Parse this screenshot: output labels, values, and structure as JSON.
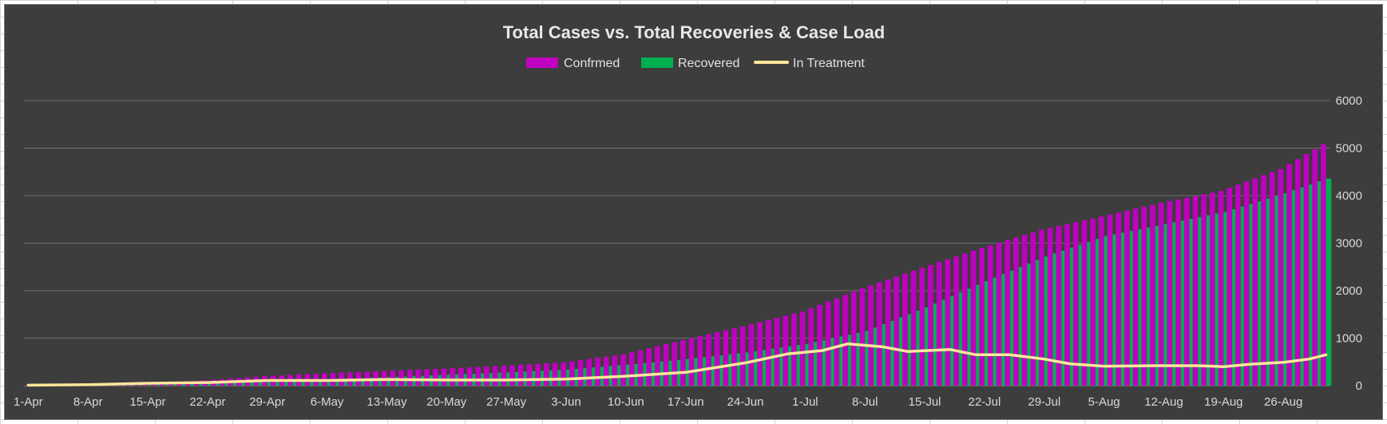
{
  "chart_data": {
    "type": "bar",
    "title": "Total Cases vs. Total Recoveries & Case Load",
    "xlabel": "",
    "ylabel": "",
    "ylim": [
      0,
      6000
    ],
    "y_ticks": [
      "0",
      "1000",
      "2000",
      "3000",
      "4000",
      "5000",
      "6000"
    ],
    "y_axis_side": "right",
    "x_ticks": [
      "1-Apr",
      "8-Apr",
      "15-Apr",
      "22-Apr",
      "29-Apr",
      "6-May",
      "13-May",
      "20-May",
      "27-May",
      "3-Jun",
      "10-Jun",
      "17-Jun",
      "24-Jun",
      "1-Jul",
      "8-Jul",
      "15-Jul",
      "22-Jul",
      "29-Jul",
      "5-Aug",
      "12-Aug",
      "19-Aug",
      "26-Aug"
    ],
    "date_range": [
      "1-Apr",
      "31-Aug"
    ],
    "x_tick_every_days": 7,
    "legend_position": "top",
    "grid": true,
    "colors": {
      "background": "#3d3d3d",
      "gridline": "#6e6e6e",
      "confirmed": "#c000c0",
      "recovered": "#00b050",
      "in_treatment": "#ffe699"
    },
    "series": [
      {
        "name": "Confrmed",
        "kind": "bar",
        "color": "#c000c0",
        "points": [
          [
            0,
            10
          ],
          [
            7,
            25
          ],
          [
            14,
            45
          ],
          [
            21,
            110
          ],
          [
            28,
            200
          ],
          [
            35,
            260
          ],
          [
            42,
            310
          ],
          [
            49,
            360
          ],
          [
            56,
            420
          ],
          [
            63,
            490
          ],
          [
            70,
            660
          ],
          [
            77,
            960
          ],
          [
            84,
            1250
          ],
          [
            91,
            1560
          ],
          [
            98,
            2050
          ],
          [
            105,
            2480
          ],
          [
            112,
            2900
          ],
          [
            119,
            3280
          ],
          [
            126,
            3560
          ],
          [
            133,
            3850
          ],
          [
            140,
            4100
          ],
          [
            147,
            4560
          ],
          [
            152,
            5080
          ]
        ]
      },
      {
        "name": "Recovered",
        "kind": "bar",
        "color": "#00b050",
        "points": [
          [
            0,
            0
          ],
          [
            7,
            5
          ],
          [
            14,
            20
          ],
          [
            21,
            40
          ],
          [
            28,
            80
          ],
          [
            35,
            130
          ],
          [
            42,
            180
          ],
          [
            49,
            230
          ],
          [
            56,
            280
          ],
          [
            63,
            340
          ],
          [
            70,
            440
          ],
          [
            77,
            560
          ],
          [
            84,
            700
          ],
          [
            91,
            880
          ],
          [
            98,
            1150
          ],
          [
            105,
            1650
          ],
          [
            112,
            2200
          ],
          [
            119,
            2720
          ],
          [
            126,
            3150
          ],
          [
            133,
            3400
          ],
          [
            140,
            3660
          ],
          [
            147,
            4050
          ],
          [
            152,
            4360
          ]
        ]
      },
      {
        "name": "In Treatment",
        "kind": "line",
        "color": "#ffe699",
        "points": [
          [
            0,
            10
          ],
          [
            7,
            20
          ],
          [
            14,
            50
          ],
          [
            21,
            65
          ],
          [
            28,
            110
          ],
          [
            35,
            110
          ],
          [
            42,
            130
          ],
          [
            49,
            120
          ],
          [
            56,
            120
          ],
          [
            63,
            140
          ],
          [
            70,
            200
          ],
          [
            77,
            280
          ],
          [
            84,
            480
          ],
          [
            89,
            670
          ],
          [
            93,
            740
          ],
          [
            96,
            880
          ],
          [
            100,
            820
          ],
          [
            103,
            720
          ],
          [
            108,
            760
          ],
          [
            111,
            650
          ],
          [
            115,
            650
          ],
          [
            119,
            560
          ],
          [
            122,
            460
          ],
          [
            126,
            410
          ],
          [
            132,
            420
          ],
          [
            137,
            420
          ],
          [
            140,
            400
          ],
          [
            143,
            450
          ],
          [
            147,
            490
          ],
          [
            150,
            560
          ],
          [
            152,
            650
          ]
        ]
      }
    ]
  }
}
